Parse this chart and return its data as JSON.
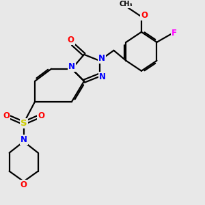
{
  "background_color": "#e8e8e8",
  "atom_colors": {
    "N": "#0000ff",
    "O": "#ff0000",
    "F": "#ff00ff",
    "S": "#cccc00",
    "C": "#000000"
  },
  "bond_color": "#000000",
  "bond_width": 1.6,
  "dbo": 0.07,
  "fs": 8.5,
  "fss": 7.0
}
